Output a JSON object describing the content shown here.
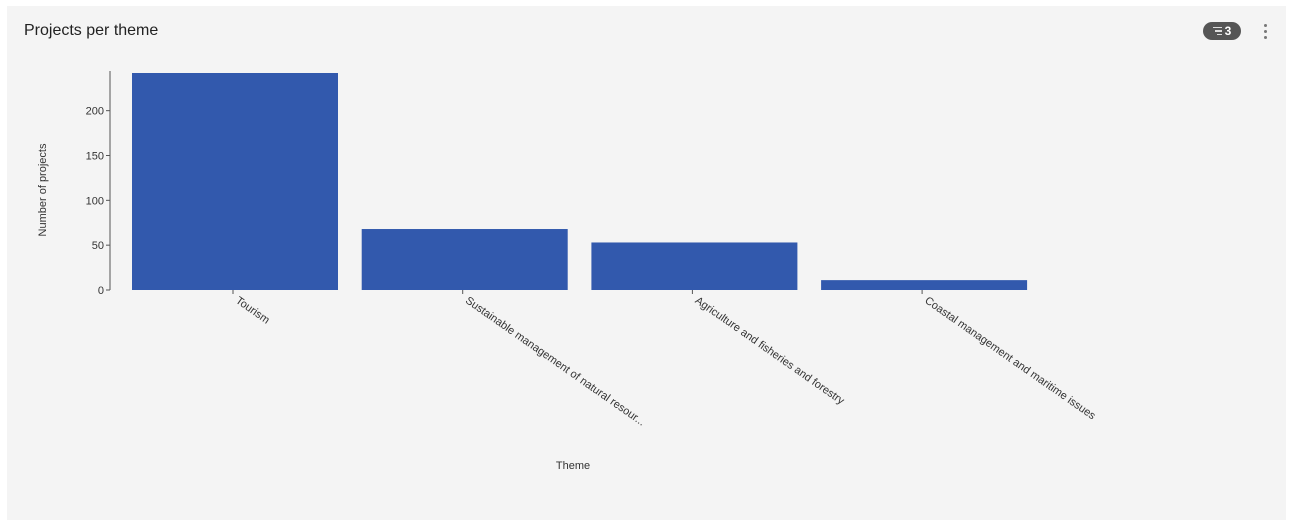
{
  "panel": {
    "title": "Projects per theme",
    "filter_count": "3",
    "filter_icon": "filter-lines-icon",
    "menu_icon": "kebab-menu-icon"
  },
  "colors": {
    "bar": "#3259ad",
    "panel_bg": "#f4f4f4",
    "badge_bg": "#555555"
  },
  "chart_data": {
    "type": "bar",
    "categories": [
      "Tourism",
      "Sustainable management of natural resour...",
      "Agriculture and fisheries and forestry",
      "Coastal management and maritime issues"
    ],
    "values": [
      242,
      68,
      53,
      11
    ],
    "xlabel": "Theme",
    "ylabel": "Number of projects",
    "yticks": [
      0,
      50,
      100,
      150,
      200
    ],
    "ylim": [
      0,
      242
    ],
    "grid": false,
    "legend": "none"
  }
}
